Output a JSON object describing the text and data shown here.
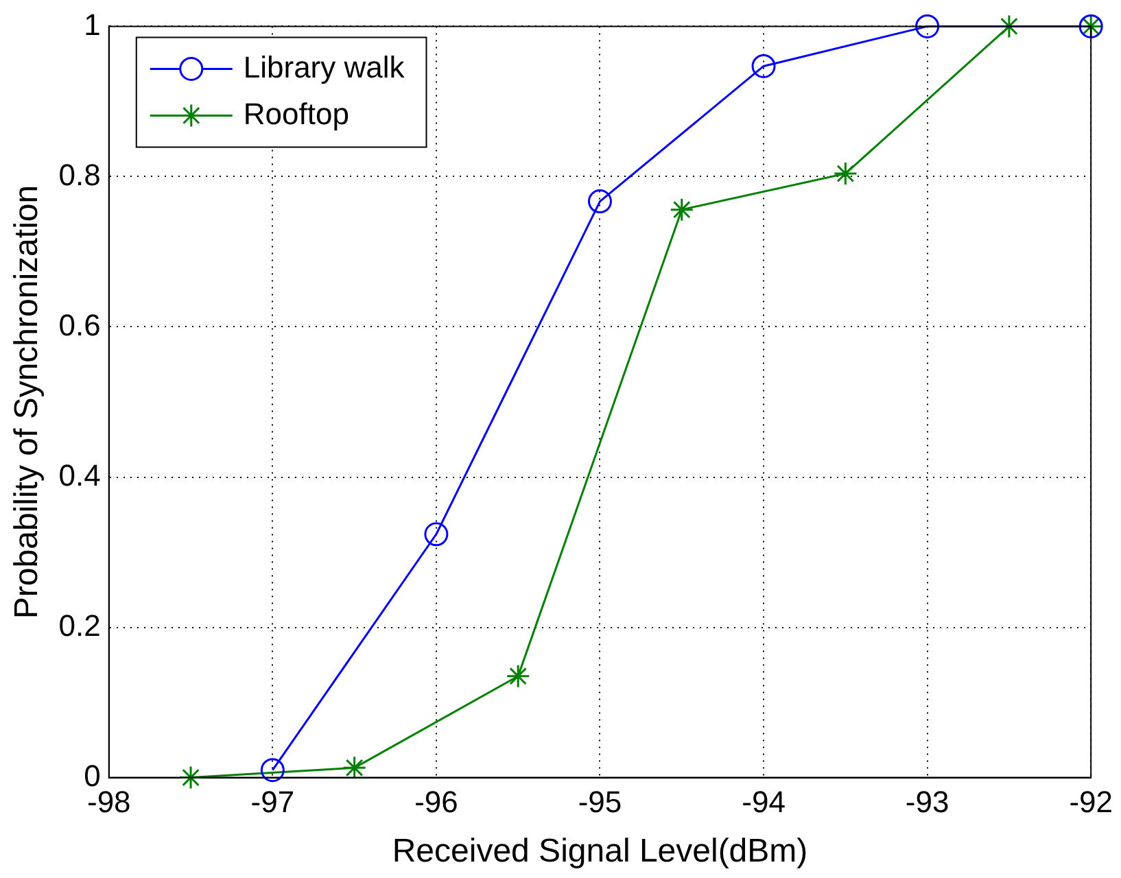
{
  "chart_data": {
    "type": "line",
    "xlabel": "Received Signal Level(dBm)",
    "ylabel": "Probability of Synchronization",
    "xlim": [
      -98,
      -92
    ],
    "xticks": [
      -98,
      -97,
      -96,
      -95,
      -94,
      -93,
      -92
    ],
    "ylim": [
      0,
      1
    ],
    "yticks": [
      0,
      0.2,
      0.4,
      0.6,
      0.8,
      1
    ],
    "grid": true,
    "legend": "top left",
    "line_style": "solid",
    "series": [
      {
        "name": "Library walk",
        "color": "#0000ff",
        "marker": "circle",
        "x": [
          -97,
          -96,
          -95,
          -94,
          -93,
          -92
        ],
        "values": [
          0.01,
          0.324,
          0.767,
          0.947,
          1,
          1
        ]
      },
      {
        "name": "Rooftop",
        "color": "#008000",
        "marker": "cross",
        "x": [
          -97.5,
          -96.5,
          -95.5,
          -94.5,
          -93.5,
          -92.5,
          -92
        ],
        "values": [
          0,
          0.013,
          0.135,
          0.756,
          0.804,
          1,
          1
        ]
      }
    ]
  }
}
